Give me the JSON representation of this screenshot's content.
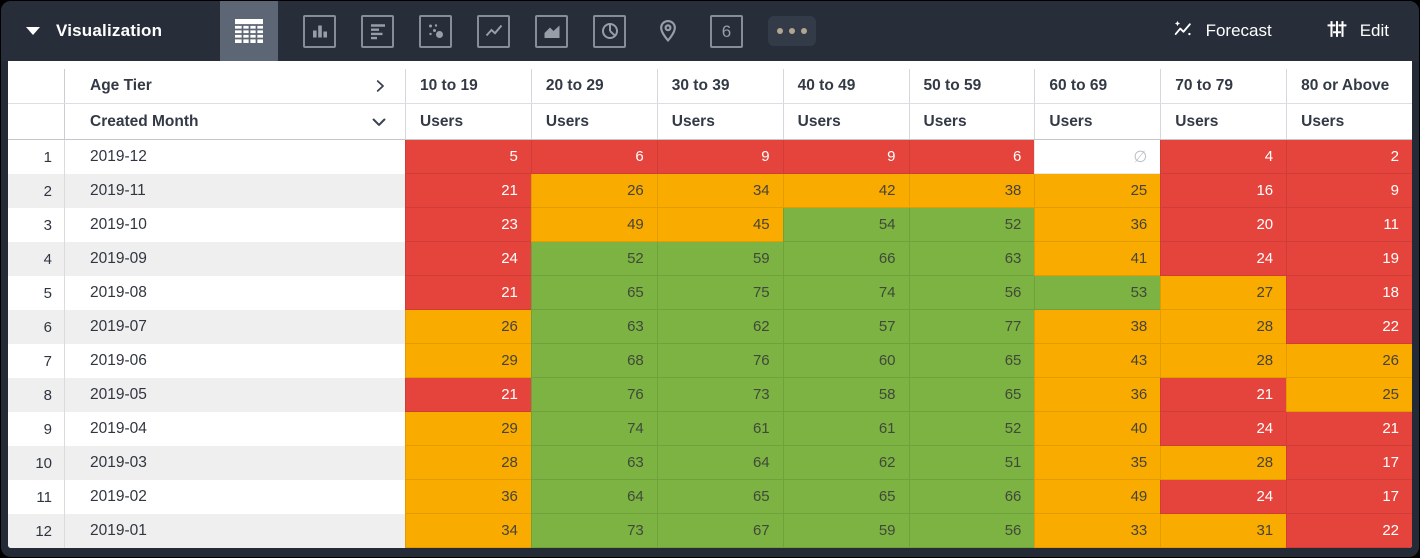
{
  "toolbar": {
    "visualization_label": "Visualization",
    "forecast_label": "Forecast",
    "edit_label": "Edit",
    "viz_types": [
      {
        "name": "table-chart",
        "active": true
      },
      {
        "name": "column-chart",
        "active": false
      },
      {
        "name": "bar-chart",
        "active": false
      },
      {
        "name": "scatter-plot",
        "active": false
      },
      {
        "name": "line-chart",
        "active": false
      },
      {
        "name": "area-chart",
        "active": false
      },
      {
        "name": "pie-chart",
        "active": false
      },
      {
        "name": "map",
        "active": false
      },
      {
        "name": "single-value",
        "active": false,
        "label": "6"
      },
      {
        "name": "more-options",
        "active": false
      }
    ]
  },
  "table": {
    "pivot_field_label": "Age Tier",
    "row_field_label": "Created Month",
    "measure_label": "Users",
    "age_tiers": [
      "10 to 19",
      "20 to 29",
      "30 to 39",
      "40 to 49",
      "50 to 59",
      "60 to 69",
      "70 to 79",
      "80 or Above"
    ],
    "null_symbol": "∅",
    "rows": [
      {
        "n": "1",
        "month": "2019-12",
        "cells": [
          {
            "v": "5",
            "c": "red"
          },
          {
            "v": "6",
            "c": "red"
          },
          {
            "v": "9",
            "c": "red"
          },
          {
            "v": "9",
            "c": "red"
          },
          {
            "v": "6",
            "c": "red"
          },
          {
            "v": "∅",
            "c": "null"
          },
          {
            "v": "4",
            "c": "red"
          },
          {
            "v": "2",
            "c": "red"
          }
        ]
      },
      {
        "n": "2",
        "month": "2019-11",
        "cells": [
          {
            "v": "21",
            "c": "red"
          },
          {
            "v": "26",
            "c": "orange"
          },
          {
            "v": "34",
            "c": "orange"
          },
          {
            "v": "42",
            "c": "orange"
          },
          {
            "v": "38",
            "c": "orange"
          },
          {
            "v": "25",
            "c": "orange"
          },
          {
            "v": "16",
            "c": "red"
          },
          {
            "v": "9",
            "c": "red"
          }
        ]
      },
      {
        "n": "3",
        "month": "2019-10",
        "cells": [
          {
            "v": "23",
            "c": "red"
          },
          {
            "v": "49",
            "c": "orange"
          },
          {
            "v": "45",
            "c": "orange"
          },
          {
            "v": "54",
            "c": "green"
          },
          {
            "v": "52",
            "c": "green"
          },
          {
            "v": "36",
            "c": "orange"
          },
          {
            "v": "20",
            "c": "red"
          },
          {
            "v": "11",
            "c": "red"
          }
        ]
      },
      {
        "n": "4",
        "month": "2019-09",
        "cells": [
          {
            "v": "24",
            "c": "red"
          },
          {
            "v": "52",
            "c": "green"
          },
          {
            "v": "59",
            "c": "green"
          },
          {
            "v": "66",
            "c": "green"
          },
          {
            "v": "63",
            "c": "green"
          },
          {
            "v": "41",
            "c": "orange"
          },
          {
            "v": "24",
            "c": "red"
          },
          {
            "v": "19",
            "c": "red"
          }
        ]
      },
      {
        "n": "5",
        "month": "2019-08",
        "cells": [
          {
            "v": "21",
            "c": "red"
          },
          {
            "v": "65",
            "c": "green"
          },
          {
            "v": "75",
            "c": "green"
          },
          {
            "v": "74",
            "c": "green"
          },
          {
            "v": "56",
            "c": "green"
          },
          {
            "v": "53",
            "c": "green"
          },
          {
            "v": "27",
            "c": "orange"
          },
          {
            "v": "18",
            "c": "red"
          }
        ]
      },
      {
        "n": "6",
        "month": "2019-07",
        "cells": [
          {
            "v": "26",
            "c": "orange"
          },
          {
            "v": "63",
            "c": "green"
          },
          {
            "v": "62",
            "c": "green"
          },
          {
            "v": "57",
            "c": "green"
          },
          {
            "v": "77",
            "c": "green"
          },
          {
            "v": "38",
            "c": "orange"
          },
          {
            "v": "28",
            "c": "orange"
          },
          {
            "v": "22",
            "c": "red"
          }
        ]
      },
      {
        "n": "7",
        "month": "2019-06",
        "cells": [
          {
            "v": "29",
            "c": "orange"
          },
          {
            "v": "68",
            "c": "green"
          },
          {
            "v": "76",
            "c": "green"
          },
          {
            "v": "60",
            "c": "green"
          },
          {
            "v": "65",
            "c": "green"
          },
          {
            "v": "43",
            "c": "orange"
          },
          {
            "v": "28",
            "c": "orange"
          },
          {
            "v": "26",
            "c": "orange"
          }
        ]
      },
      {
        "n": "8",
        "month": "2019-05",
        "cells": [
          {
            "v": "21",
            "c": "red"
          },
          {
            "v": "76",
            "c": "green"
          },
          {
            "v": "73",
            "c": "green"
          },
          {
            "v": "58",
            "c": "green"
          },
          {
            "v": "65",
            "c": "green"
          },
          {
            "v": "36",
            "c": "orange"
          },
          {
            "v": "21",
            "c": "red"
          },
          {
            "v": "25",
            "c": "orange"
          }
        ]
      },
      {
        "n": "9",
        "month": "2019-04",
        "cells": [
          {
            "v": "29",
            "c": "orange"
          },
          {
            "v": "74",
            "c": "green"
          },
          {
            "v": "61",
            "c": "green"
          },
          {
            "v": "61",
            "c": "green"
          },
          {
            "v": "52",
            "c": "green"
          },
          {
            "v": "40",
            "c": "orange"
          },
          {
            "v": "24",
            "c": "red"
          },
          {
            "v": "21",
            "c": "red"
          }
        ]
      },
      {
        "n": "10",
        "month": "2019-03",
        "cells": [
          {
            "v": "28",
            "c": "orange"
          },
          {
            "v": "63",
            "c": "green"
          },
          {
            "v": "64",
            "c": "green"
          },
          {
            "v": "62",
            "c": "green"
          },
          {
            "v": "51",
            "c": "green"
          },
          {
            "v": "35",
            "c": "orange"
          },
          {
            "v": "28",
            "c": "orange"
          },
          {
            "v": "17",
            "c": "red"
          }
        ]
      },
      {
        "n": "11",
        "month": "2019-02",
        "cells": [
          {
            "v": "36",
            "c": "orange"
          },
          {
            "v": "64",
            "c": "green"
          },
          {
            "v": "65",
            "c": "green"
          },
          {
            "v": "65",
            "c": "green"
          },
          {
            "v": "66",
            "c": "green"
          },
          {
            "v": "49",
            "c": "orange"
          },
          {
            "v": "24",
            "c": "red"
          },
          {
            "v": "17",
            "c": "red"
          }
        ]
      },
      {
        "n": "12",
        "month": "2019-01",
        "cells": [
          {
            "v": "34",
            "c": "orange"
          },
          {
            "v": "73",
            "c": "green"
          },
          {
            "v": "67",
            "c": "green"
          },
          {
            "v": "59",
            "c": "green"
          },
          {
            "v": "56",
            "c": "green"
          },
          {
            "v": "33",
            "c": "orange"
          },
          {
            "v": "31",
            "c": "orange"
          },
          {
            "v": "22",
            "c": "red"
          }
        ]
      }
    ]
  },
  "colors": {
    "red": "#e5443c",
    "orange": "#f9ab00",
    "green": "#7cb342",
    "topbar": "#272e3a",
    "active_tab": "#5d6674",
    "null_cell": "#ffffff"
  }
}
